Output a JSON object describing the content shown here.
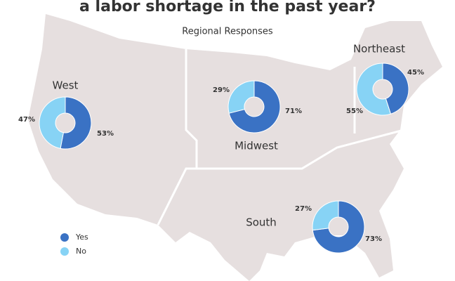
{
  "header": {
    "title": "a labor shortage in the past year?",
    "subtitle": "Regional Responses"
  },
  "chart_data": [
    {
      "type": "donut",
      "title": "West",
      "categories": [
        "Yes",
        "No"
      ],
      "values": [
        53,
        47
      ],
      "value_labels": [
        "53%",
        "47%"
      ],
      "colors": [
        "#3a72c4",
        "#87d3f5"
      ]
    },
    {
      "type": "donut",
      "title": "Midwest",
      "categories": [
        "Yes",
        "No"
      ],
      "values": [
        71,
        29
      ],
      "value_labels": [
        "71%",
        "29%"
      ],
      "colors": [
        "#3a72c4",
        "#87d3f5"
      ]
    },
    {
      "type": "donut",
      "title": "Northeast",
      "categories": [
        "Yes",
        "No"
      ],
      "values": [
        45,
        55
      ],
      "value_labels": [
        "45%",
        "55%"
      ],
      "colors": [
        "#3a72c4",
        "#87d3f5"
      ]
    },
    {
      "type": "donut",
      "title": "South",
      "categories": [
        "Yes",
        "No"
      ],
      "values": [
        73,
        27
      ],
      "value_labels": [
        "73%",
        "27%"
      ],
      "colors": [
        "#3a72c4",
        "#87d3f5"
      ]
    }
  ]
}
